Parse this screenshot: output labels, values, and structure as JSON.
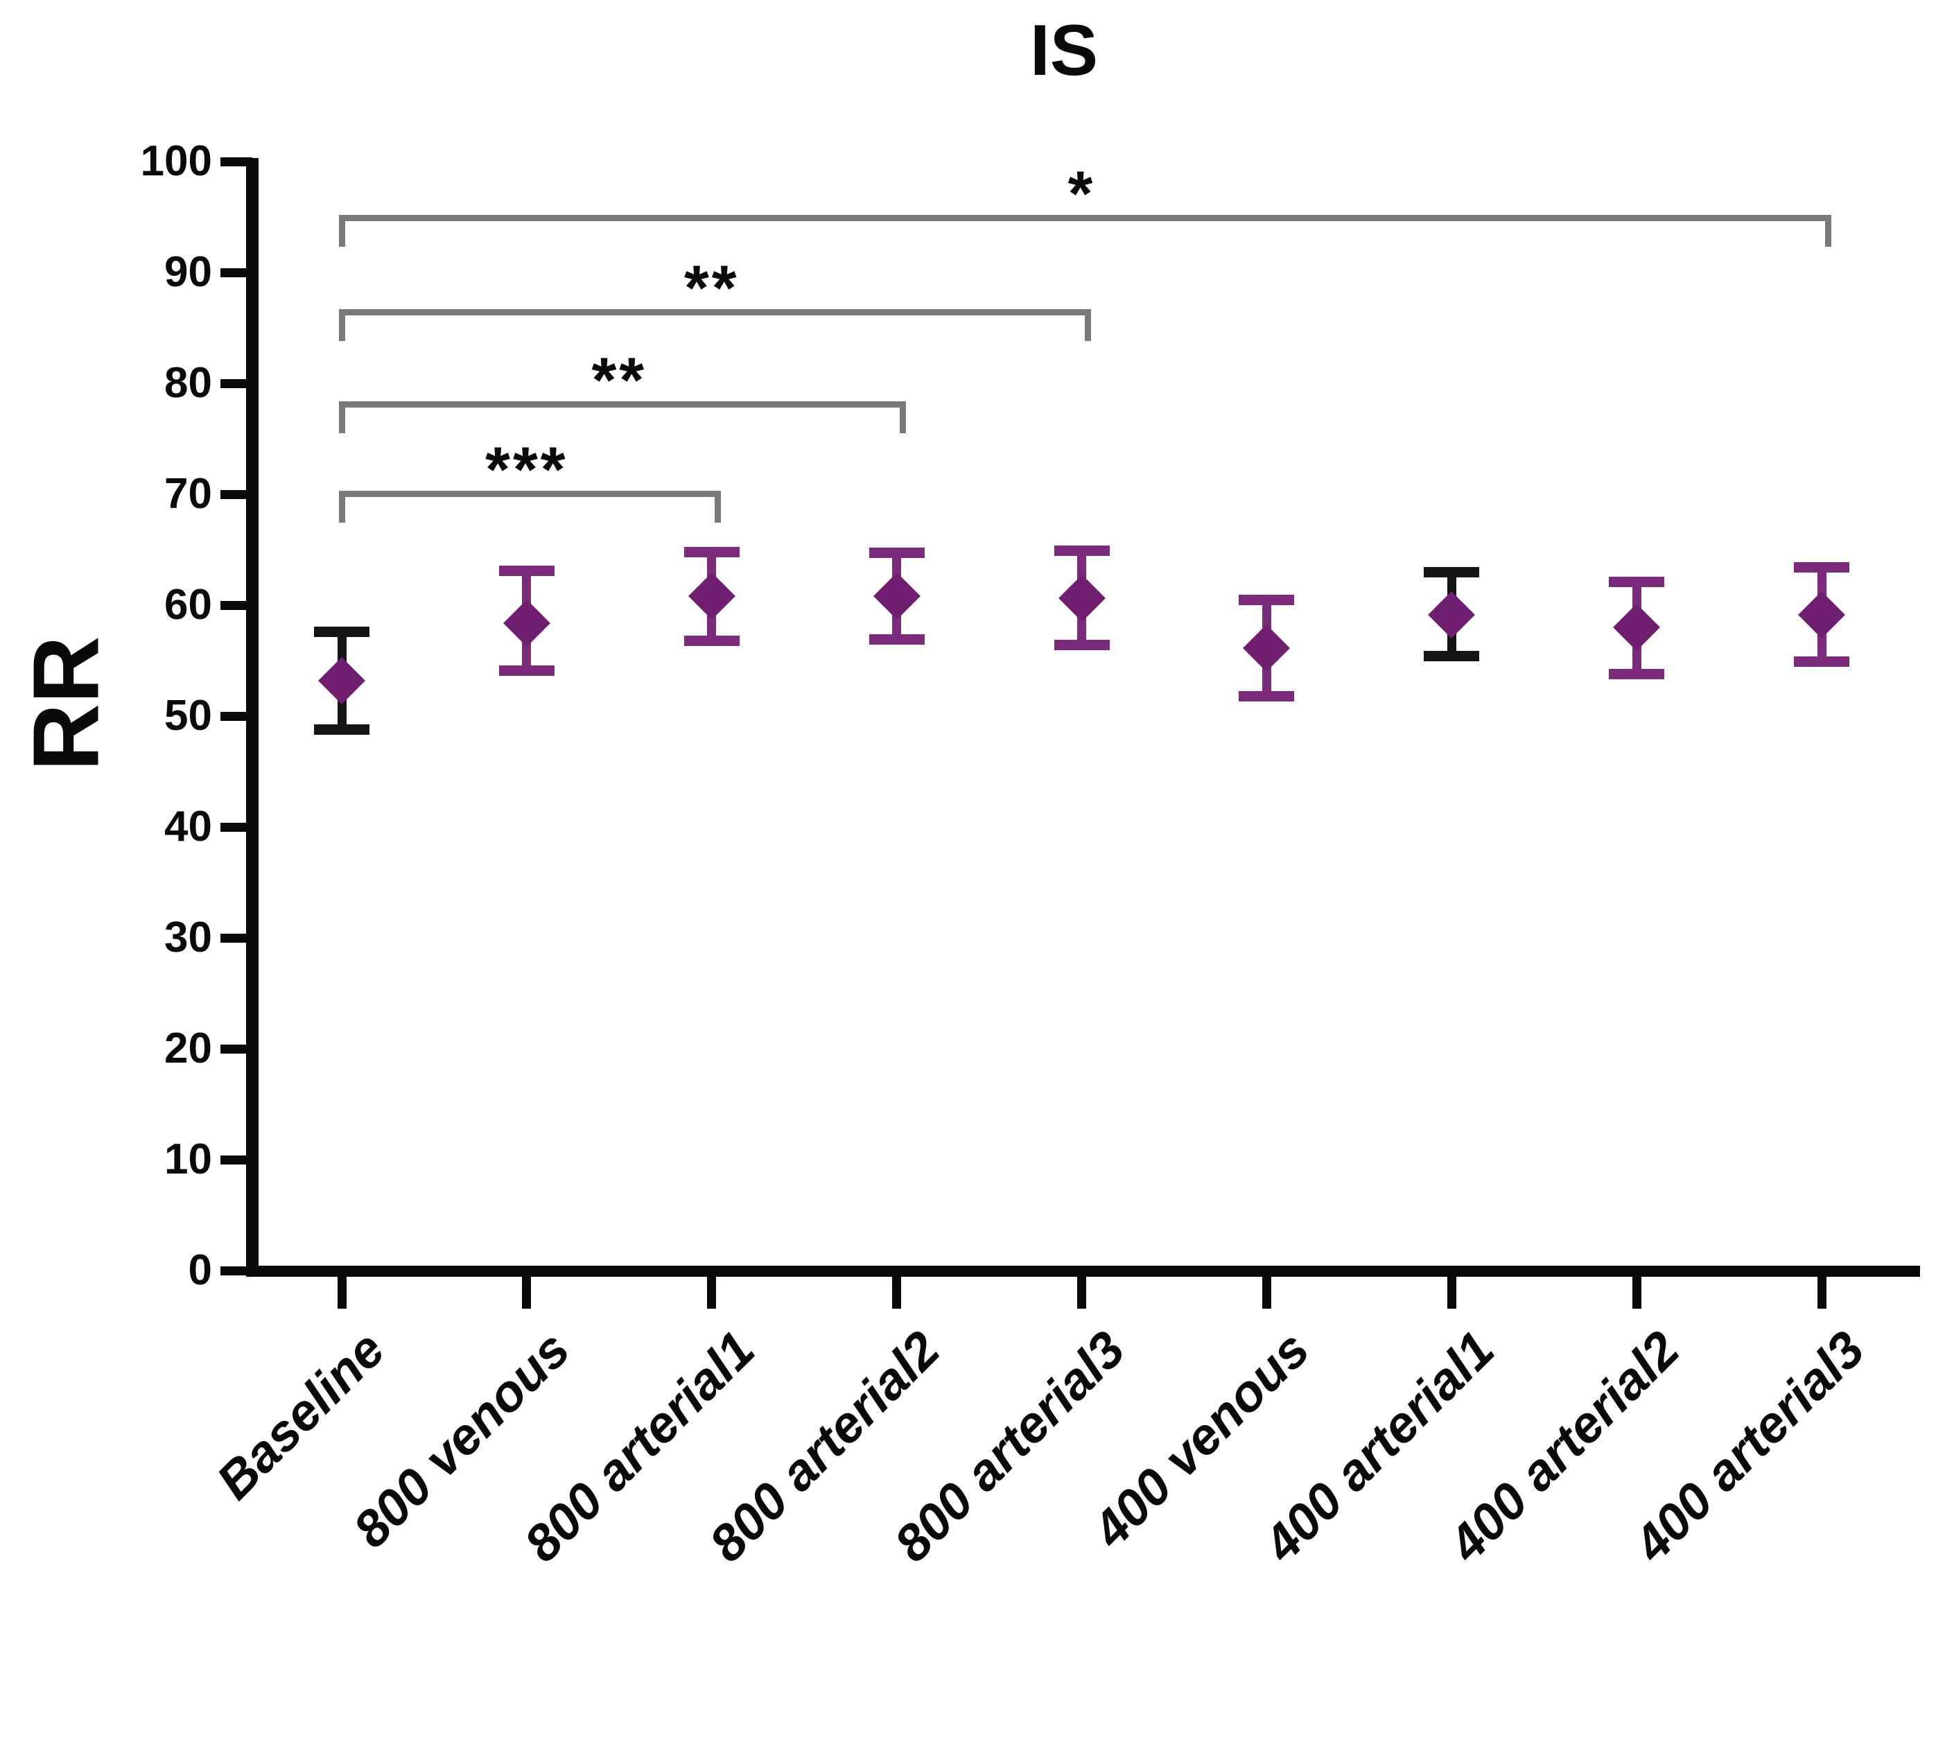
{
  "chart_data": {
    "type": "scatter",
    "title": "IS",
    "ylabel": "RR",
    "xlabel": "",
    "ylim": [
      0,
      100
    ],
    "ytick_step": 10,
    "ytick_labels": [
      "0",
      "10",
      "20",
      "30",
      "40",
      "50",
      "60",
      "70",
      "80",
      "90",
      "100"
    ],
    "grid": false,
    "legend": "none",
    "marker_shape": "diamond",
    "categories": [
      "Baseline",
      "800 venous",
      "800 arterial1",
      "800 arterial2",
      "800 arterial3",
      "400 venous",
      "400 arterial1",
      "400 arterial2",
      "400 arterial3"
    ],
    "points": [
      {
        "category": "Baseline",
        "mean": 53.2,
        "upper": 57.6,
        "lower": 48.8,
        "error_color": "black"
      },
      {
        "category": "800 venous",
        "mean": 58.4,
        "upper": 63.1,
        "lower": 54.1,
        "error_color": "purple"
      },
      {
        "category": "800 arterial1",
        "mean": 60.8,
        "upper": 64.8,
        "lower": 56.8,
        "error_color": "purple"
      },
      {
        "category": "800 arterial2",
        "mean": 60.8,
        "upper": 64.7,
        "lower": 56.9,
        "error_color": "purple"
      },
      {
        "category": "800 arterial3",
        "mean": 60.6,
        "upper": 64.9,
        "lower": 56.4,
        "error_color": "purple"
      },
      {
        "category": "400 venous",
        "mean": 56.1,
        "upper": 60.5,
        "lower": 51.8,
        "error_color": "purple"
      },
      {
        "category": "400 arterial1",
        "mean": 59.1,
        "upper": 63.0,
        "lower": 55.4,
        "error_color": "black"
      },
      {
        "category": "400 arterial2",
        "mean": 58.0,
        "upper": 62.1,
        "lower": 53.8,
        "error_color": "purple"
      },
      {
        "category": "400 arterial3",
        "mean": 59.1,
        "upper": 63.4,
        "lower": 54.9,
        "error_color": "purple"
      }
    ],
    "significance": [
      {
        "from": 0,
        "to": 8,
        "label": "*",
        "y": 95.2
      },
      {
        "from": 0,
        "to": 4,
        "label": "**",
        "y": 86.7
      },
      {
        "from": 0,
        "to": 3,
        "label": "**",
        "y": 78.4
      },
      {
        "from": 0,
        "to": 2,
        "label": "***",
        "y": 70.3
      }
    ],
    "colors": {
      "marker": "#701E70",
      "error_purple": "#7C2A7C",
      "error_black": "#151515",
      "bracket": "#7A7A7A",
      "axis": "#0A0A0A",
      "text": "#0A0A0A"
    }
  }
}
